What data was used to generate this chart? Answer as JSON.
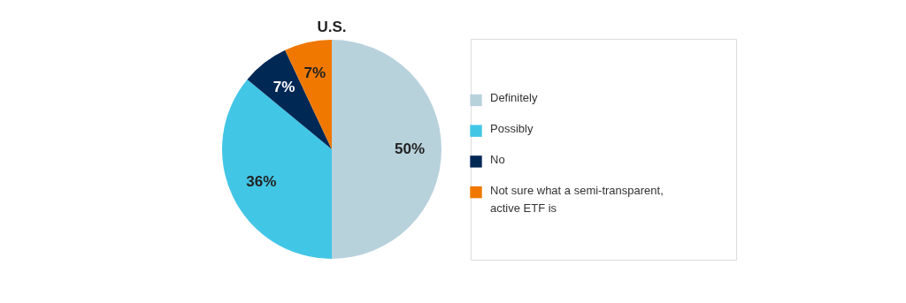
{
  "chart_data": {
    "type": "pie",
    "title": "U.S.",
    "categories": [
      "Definitely",
      "Possibly",
      "No",
      "Not sure what a semi-transparent, active ETF is"
    ],
    "values": [
      50,
      36,
      7,
      7
    ],
    "colors": [
      "#b8d2dc",
      "#42c6e6",
      "#002855",
      "#f07800"
    ],
    "value_labels": [
      "50%",
      "36%",
      "7%",
      "7%"
    ],
    "legend": "right"
  }
}
